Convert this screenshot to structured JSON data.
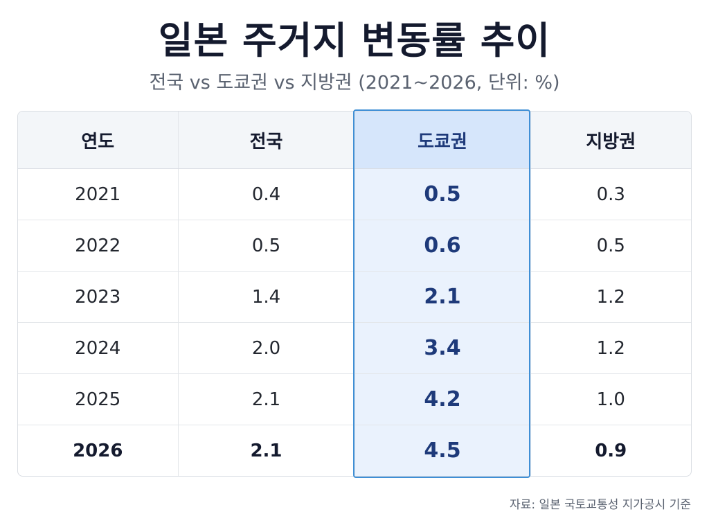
{
  "chart_data": {
    "type": "table",
    "title": "일본 주거지 변동률 추이",
    "subtitle": "전국 vs 도쿄권 vs 지방권 (2021~2026, 단위: %)",
    "columns": [
      "연도",
      "전국",
      "도쿄권",
      "지방권"
    ],
    "highlight_column": "도쿄권",
    "rows": [
      [
        "2021",
        "0.4",
        "0.5",
        "0.3"
      ],
      [
        "2022",
        "0.5",
        "0.6",
        "0.5"
      ],
      [
        "2023",
        "1.4",
        "2.1",
        "1.2"
      ],
      [
        "2024",
        "2.0",
        "3.4",
        "1.2"
      ],
      [
        "2025",
        "2.1",
        "4.2",
        "1.0"
      ],
      [
        "2026",
        "2.1",
        "4.5",
        "0.9"
      ]
    ],
    "source": "자료: 일본 국토교통성 지가공시 기준"
  },
  "colors": {
    "highlight_border": "#3f8fd6",
    "highlight_fill": "#eaf2fd",
    "highlight_text": "#1e3a7a"
  }
}
